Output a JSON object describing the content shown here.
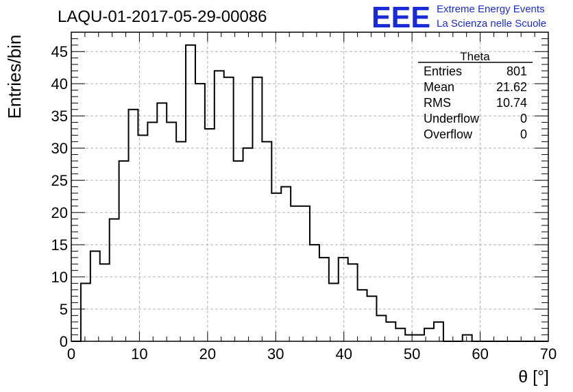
{
  "chart_data": {
    "type": "bar",
    "style": "step-histogram",
    "title": "LAQU-01-2017-05-29-00086",
    "xlabel": "θ [°]",
    "ylabel": "Entries/bin",
    "xlim": [
      0,
      70
    ],
    "ylim": [
      0,
      48
    ],
    "grid": true,
    "bin_width": 1.4,
    "x_ticks": [
      "0",
      "10",
      "20",
      "30",
      "40",
      "50",
      "60",
      "70"
    ],
    "y_ticks": [
      "0",
      "5",
      "10",
      "15",
      "20",
      "25",
      "30",
      "35",
      "40",
      "45"
    ],
    "bin_edges_start": 0,
    "values": [
      0,
      9,
      14,
      12,
      19,
      28,
      36,
      32,
      34,
      37,
      34,
      31,
      46,
      40,
      33,
      42,
      41,
      28,
      30,
      41,
      31,
      23,
      24,
      21,
      21,
      15,
      13,
      9,
      13,
      12,
      8,
      7,
      4,
      3,
      2,
      1,
      1,
      2,
      3,
      0,
      0,
      1,
      0,
      0,
      0,
      0,
      0,
      0,
      0,
      0
    ],
    "stats_box": {
      "name": "Theta",
      "rows": [
        {
          "label": "Entries",
          "value": "801"
        },
        {
          "label": "Mean",
          "value": "21.62"
        },
        {
          "label": "RMS",
          "value": "10.74"
        },
        {
          "label": "Underflow",
          "value": "0"
        },
        {
          "label": "Overflow",
          "value": "0"
        }
      ]
    }
  },
  "logo": {
    "mark": "EEE",
    "line1": "Extreme Energy Events",
    "line2": "La Scienza nelle Scuole"
  },
  "colors": {
    "histogram": "#000000",
    "grid": "#b0b0b0",
    "logo": "#1a2bd6"
  }
}
